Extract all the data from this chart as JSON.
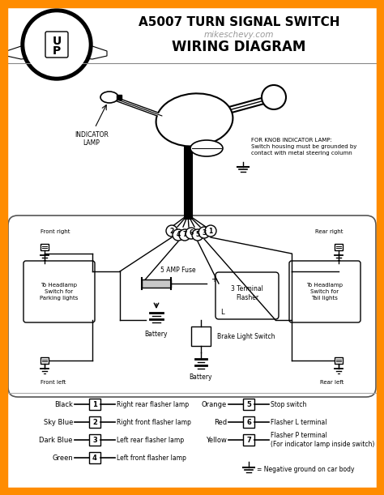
{
  "border_color": "#FF8C00",
  "bg_color": "#f2f2f2",
  "title1": "A5007 TURN SIGNAL SWITCH",
  "title2": "mikeschevy.com",
  "title3": "WIRING DIAGRAM",
  "legend_left": [
    {
      "color_name": "Black",
      "num": "1",
      "desc": "Right rear flasher lamp"
    },
    {
      "color_name": "Sky Blue",
      "num": "2",
      "desc": "Right front flasher lamp"
    },
    {
      "color_name": "Dark Blue",
      "num": "3",
      "desc": "Left rear flasher lamp"
    },
    {
      "color_name": "Green",
      "num": "4",
      "desc": "Left front flasher lamp"
    }
  ],
  "legend_right": [
    {
      "color_name": "Orange",
      "num": "5",
      "desc": "Stop switch"
    },
    {
      "color_name": "Red",
      "num": "6",
      "desc": "Flasher L terminal"
    },
    {
      "color_name": "Yellow",
      "num": "7",
      "desc": "Flasher P terminal\n(For indicator lamp inside switch)"
    }
  ],
  "ground_text": "= Negative ground on car body",
  "indicator_lamp_text": "INDICATOR\nLAMP",
  "knob_text": "FOR KNOB INDICATOR LAMP:\nSwitch housing must be grounded by\ncontact with metal steering column",
  "front_right": "Front right",
  "rear_right": "Rear right",
  "front_left": "Front left",
  "rear_left": "Rear left",
  "headlamp_park": "To Headlamp\nSwitch for\nParking lights",
  "headlamp_tail": "To Headlamp\nSwitch for\nTail lights",
  "battery1": "Battery",
  "battery2": "Battery",
  "fuse_text": "5 AMP Fuse",
  "flasher_text": "3 Terminal\nFlasher",
  "brake_text": "Brake Light Switch"
}
